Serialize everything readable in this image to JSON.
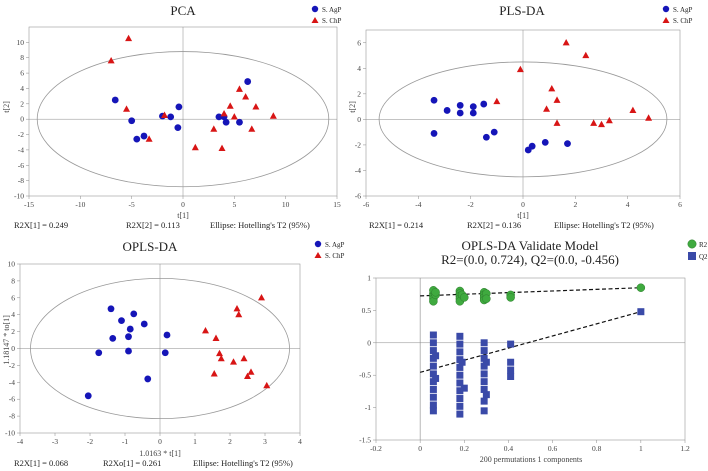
{
  "colors": {
    "agp": "#1515b8",
    "chp": "#d81515",
    "r2": "#3faa3f",
    "q2": "#3a4aa8"
  },
  "chart_data": [
    {
      "id": "pca",
      "type": "scatter",
      "title": "PCA",
      "xlabel": "t[1]",
      "ylabel": "t[2]",
      "xlim": [
        -15,
        15
      ],
      "ylim": [
        -10,
        12
      ],
      "xticks": [
        -15,
        -10,
        -5,
        0,
        5,
        10,
        15
      ],
      "yticks": [
        -10,
        -8,
        -6,
        -4,
        -2,
        0,
        2,
        4,
        6,
        8,
        10
      ],
      "ellipse": {
        "rx": 14.2,
        "ry": 8.8
      },
      "legend": [
        "S. AgP",
        "S. ChP"
      ],
      "series": [
        {
          "name": "S. AgP",
          "marker": "circle",
          "color": "#1515b8",
          "points": [
            [
              -6.6,
              2.5
            ],
            [
              -5.0,
              -0.2
            ],
            [
              -4.5,
              -2.6
            ],
            [
              -3.8,
              -2.2
            ],
            [
              -2.0,
              0.4
            ],
            [
              -1.2,
              0.3
            ],
            [
              -0.5,
              -1.1
            ],
            [
              -0.4,
              1.6
            ],
            [
              3.5,
              0.3
            ],
            [
              4.0,
              0.3
            ],
            [
              4.2,
              -0.4
            ],
            [
              5.5,
              -0.4
            ],
            [
              6.3,
              4.9
            ]
          ]
        },
        {
          "name": "S. ChP",
          "marker": "triangle",
          "color": "#d81515",
          "points": [
            [
              -7.0,
              7.6
            ],
            [
              -5.3,
              10.5
            ],
            [
              -5.5,
              1.3
            ],
            [
              -3.3,
              -2.6
            ],
            [
              -1.8,
              0.5
            ],
            [
              1.2,
              -3.7
            ],
            [
              3.0,
              -1.3
            ],
            [
              3.8,
              -3.8
            ],
            [
              4.0,
              0.7
            ],
            [
              4.6,
              1.7
            ],
            [
              5.0,
              0.3
            ],
            [
              5.5,
              3.9
            ],
            [
              6.1,
              2.9
            ],
            [
              6.7,
              -1.3
            ],
            [
              7.1,
              1.6
            ],
            [
              8.8,
              0.4
            ]
          ]
        }
      ],
      "footer": [
        "R2X[1] = 0.249",
        "R2X[2] = 0.113",
        "Ellipse: Hotelling's T2 (95%)"
      ]
    },
    {
      "id": "plsda",
      "type": "scatter",
      "title": "PLS-DA",
      "xlabel": "t[1]",
      "ylabel": "t[2]",
      "xlim": [
        -6,
        6
      ],
      "ylim": [
        -6,
        7
      ],
      "xticks": [
        -6,
        -4,
        -2,
        0,
        2,
        4,
        6
      ],
      "yticks": [
        -6,
        -4,
        -2,
        0,
        2,
        4,
        6
      ],
      "ellipse": {
        "rx": 5.5,
        "ry": 4.5
      },
      "legend": [
        "S. AgP",
        "S. ChP"
      ],
      "series": [
        {
          "name": "S. AgP",
          "marker": "circle",
          "color": "#1515b8",
          "points": [
            [
              -3.4,
              1.5
            ],
            [
              -3.4,
              -1.1
            ],
            [
              -2.9,
              0.7
            ],
            [
              -2.4,
              1.1
            ],
            [
              -2.4,
              0.5
            ],
            [
              -1.9,
              1.0
            ],
            [
              -1.9,
              0.5
            ],
            [
              -1.5,
              1.2
            ],
            [
              -1.4,
              -1.4
            ],
            [
              -1.1,
              -1.0
            ],
            [
              0.2,
              -2.4
            ],
            [
              0.35,
              -2.1
            ],
            [
              0.85,
              -1.8
            ],
            [
              1.7,
              -1.9
            ]
          ]
        },
        {
          "name": "S. ChP",
          "marker": "triangle",
          "color": "#d81515",
          "points": [
            [
              -1.0,
              1.4
            ],
            [
              -0.1,
              3.9
            ],
            [
              0.9,
              0.8
            ],
            [
              1.1,
              2.4
            ],
            [
              1.3,
              1.5
            ],
            [
              1.3,
              -0.3
            ],
            [
              1.65,
              6.0
            ],
            [
              2.4,
              5.0
            ],
            [
              2.7,
              -0.3
            ],
            [
              3.0,
              -0.4
            ],
            [
              3.3,
              -0.1
            ],
            [
              4.2,
              0.7
            ],
            [
              4.8,
              0.1
            ]
          ]
        }
      ],
      "footer": [
        "R2X[1] = 0.214",
        "R2X[2] = 0.136",
        "Ellipse: Hotelling's T2 (95%)"
      ]
    },
    {
      "id": "oplsda",
      "type": "scatter",
      "title": "OPLS-DA",
      "xlabel": "1.0163 * t[1]",
      "ylabel": "1.18147 * to[1]",
      "xlim": [
        -4,
        4
      ],
      "ylim": [
        -10,
        10
      ],
      "xticks": [
        -4,
        -3,
        -2,
        -1,
        0,
        1,
        2,
        3,
        4
      ],
      "yticks": [
        -10,
        -8,
        -6,
        -4,
        -2,
        0,
        2,
        4,
        6,
        8,
        10
      ],
      "ellipse": {
        "rx": 3.7,
        "ry": 8.3
      },
      "legend": [
        "S. AgP",
        "S. ChP"
      ],
      "series": [
        {
          "name": "S. AgP",
          "marker": "circle",
          "color": "#1515b8",
          "points": [
            [
              -2.05,
              -5.6
            ],
            [
              -1.75,
              -0.5
            ],
            [
              -1.4,
              4.7
            ],
            [
              -1.35,
              1.2
            ],
            [
              -1.1,
              3.3
            ],
            [
              -0.9,
              -0.3
            ],
            [
              -0.9,
              1.4
            ],
            [
              -0.85,
              2.3
            ],
            [
              -0.75,
              4.1
            ],
            [
              -0.45,
              2.9
            ],
            [
              -0.35,
              -3.6
            ],
            [
              0.2,
              1.6
            ],
            [
              0.15,
              -0.5
            ]
          ]
        },
        {
          "name": "S. ChP",
          "marker": "triangle",
          "color": "#d81515",
          "points": [
            [
              1.3,
              2.1
            ],
            [
              1.55,
              -3.0
            ],
            [
              1.6,
              1.2
            ],
            [
              1.7,
              -0.6
            ],
            [
              1.75,
              -1.2
            ],
            [
              2.1,
              -1.6
            ],
            [
              2.2,
              4.7
            ],
            [
              2.25,
              4.0
            ],
            [
              2.4,
              -1.2
            ],
            [
              2.5,
              -3.3
            ],
            [
              2.6,
              -2.8
            ],
            [
              2.9,
              6.0
            ],
            [
              3.05,
              -4.4
            ]
          ]
        }
      ],
      "footer": [
        "R2X[1] = 0.068",
        "R2Xo[1] = 0.261",
        "Ellipse: Hotelling's T2 (95%)"
      ]
    },
    {
      "id": "validate",
      "type": "scatter",
      "title": "OPLS-DA Validate Model",
      "subtitle": "R2=(0.0, 0.724), Q2=(0.0, -0.456)",
      "xlabel": "200 permutations 1 components",
      "ylabel": "",
      "xlim": [
        -0.2,
        1.2
      ],
      "ylim": [
        -1.5,
        1.0
      ],
      "xticks": [
        -0.2,
        0,
        0.2,
        0.4,
        0.6,
        0.8,
        1,
        1.2
      ],
      "yticks": [
        -1.5,
        -1,
        -0.5,
        0,
        0.5,
        1
      ],
      "legend": [
        "R2",
        "Q2"
      ],
      "series": [
        {
          "name": "R2",
          "marker": "circle",
          "color": "#3faa3f",
          "points": [
            [
              0.06,
              0.76
            ],
            [
              0.06,
              0.72
            ],
            [
              0.06,
              0.68
            ],
            [
              0.06,
              0.81
            ],
            [
              0.06,
              0.64
            ],
            [
              0.07,
              0.74
            ],
            [
              0.07,
              0.78
            ],
            [
              0.18,
              0.8
            ],
            [
              0.18,
              0.76
            ],
            [
              0.18,
              0.72
            ],
            [
              0.18,
              0.68
            ],
            [
              0.18,
              0.64
            ],
            [
              0.19,
              0.74
            ],
            [
              0.2,
              0.7
            ],
            [
              0.29,
              0.78
            ],
            [
              0.29,
              0.74
            ],
            [
              0.29,
              0.7
            ],
            [
              0.29,
              0.66
            ],
            [
              0.3,
              0.76
            ],
            [
              0.3,
              0.68
            ],
            [
              0.41,
              0.74
            ],
            [
              0.41,
              0.7
            ],
            [
              1.0,
              0.85
            ]
          ]
        },
        {
          "name": "Q2",
          "marker": "square",
          "color": "#3a4aa8",
          "points": [
            [
              0.06,
              0.12
            ],
            [
              0.06,
              0.0
            ],
            [
              0.06,
              -0.12
            ],
            [
              0.06,
              -0.24
            ],
            [
              0.06,
              -0.36
            ],
            [
              0.06,
              -0.48
            ],
            [
              0.06,
              -0.6
            ],
            [
              0.06,
              -0.72
            ],
            [
              0.06,
              -0.84
            ],
            [
              0.06,
              -0.96
            ],
            [
              0.06,
              -1.05
            ],
            [
              0.07,
              -0.2
            ],
            [
              0.07,
              -0.55
            ],
            [
              0.18,
              0.1
            ],
            [
              0.18,
              -0.02
            ],
            [
              0.18,
              -0.14
            ],
            [
              0.18,
              -0.26
            ],
            [
              0.18,
              -0.38
            ],
            [
              0.18,
              -0.5
            ],
            [
              0.18,
              -0.62
            ],
            [
              0.18,
              -0.74
            ],
            [
              0.18,
              -0.86
            ],
            [
              0.18,
              -0.98
            ],
            [
              0.18,
              -1.1
            ],
            [
              0.19,
              -0.3
            ],
            [
              0.2,
              -0.7
            ],
            [
              0.29,
              0.0
            ],
            [
              0.29,
              -0.12
            ],
            [
              0.29,
              -0.24
            ],
            [
              0.29,
              -0.36
            ],
            [
              0.29,
              -0.48
            ],
            [
              0.29,
              -0.6
            ],
            [
              0.29,
              -0.72
            ],
            [
              0.29,
              -0.9
            ],
            [
              0.29,
              -1.05
            ],
            [
              0.3,
              -0.3
            ],
            [
              0.3,
              -0.8
            ],
            [
              0.41,
              -0.02
            ],
            [
              0.41,
              -0.3
            ],
            [
              0.41,
              -0.42
            ],
            [
              0.41,
              -0.52
            ],
            [
              1.0,
              0.48
            ]
          ]
        }
      ],
      "lines": [
        {
          "name": "R2",
          "from": [
            0.0,
            0.724
          ],
          "to": [
            1.0,
            0.85
          ]
        },
        {
          "name": "Q2",
          "from": [
            0.0,
            -0.456
          ],
          "to": [
            1.0,
            0.48
          ]
        }
      ]
    }
  ]
}
